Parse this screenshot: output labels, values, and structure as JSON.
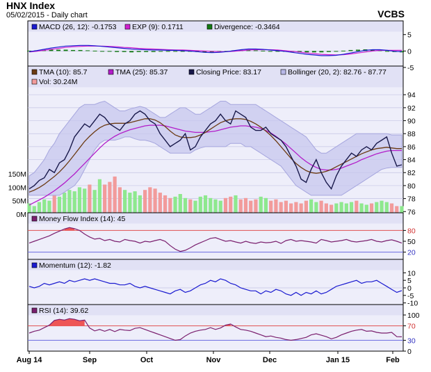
{
  "header": {
    "title": "HNX Index",
    "subtitle": "05/02/2015 - Daily chart",
    "brand": "VCBS"
  },
  "colors": {
    "panel_bg": "#eeeefa",
    "legend_bg": "#e1e1f5",
    "band": "#c7c7ee",
    "band_edge": "#a6a6de",
    "price": "#18184a",
    "tma10": "#6b3a12",
    "tma25": "#b21cc9",
    "macd": "#1a1ad0",
    "signal": "#d020d0",
    "div": "#137a13",
    "vol_up": "#8ee88e",
    "vol_down": "#f29b9b",
    "mfi": "#7a1f6e",
    "mom": "#1a1ad0",
    "rsi": "#7a1f6e",
    "hi_fill": "#ee5555",
    "lo_fill": "#6a3dcc",
    "ref_red": "#e05050",
    "ref_blue": "#6a6ae0"
  },
  "x_axis": {
    "labels": [
      "Aug 14",
      "Sep",
      "Oct",
      "Nov",
      "Dec",
      "Jan 15",
      "Feb"
    ]
  },
  "chart_data": [
    {
      "type": "line",
      "panel": "MACD",
      "legend": [
        "MACD (26, 12): -0.1753",
        "EXP (9): 0.1711",
        "Divergence: -0.3464"
      ],
      "series": [
        {
          "name": "MACD (26, 12)",
          "values": [
            -0.2,
            0.1,
            0.5,
            0.9,
            1.2,
            1.5,
            1.6,
            1.7,
            1.7,
            1.6,
            1.4,
            1.2,
            1.0,
            0.8,
            0.6,
            0.5,
            0.4,
            0.3,
            0.3,
            0.2,
            0.2,
            0.1,
            0.0,
            -0.2,
            -0.4,
            -0.5,
            -0.4,
            -0.2,
            0.1,
            0.4,
            0.6,
            0.6,
            0.5,
            0.3,
            0.1,
            -0.1,
            -0.4,
            -0.7,
            -1.0,
            -1.2,
            -1.4,
            -1.4,
            -1.3,
            -1.0,
            -0.6,
            -0.2,
            0.2,
            0.4,
            0.4,
            0.2,
            -0.1,
            -0.2
          ]
        },
        {
          "name": "EXP (9)",
          "values": [
            -0.3,
            -0.1,
            0.2,
            0.5,
            0.8,
            1.1,
            1.3,
            1.4,
            1.5,
            1.5,
            1.5,
            1.4,
            1.3,
            1.1,
            1.0,
            0.8,
            0.7,
            0.6,
            0.5,
            0.4,
            0.3,
            0.3,
            0.2,
            0.1,
            0.0,
            -0.1,
            -0.2,
            -0.2,
            -0.1,
            0.1,
            0.3,
            0.4,
            0.4,
            0.4,
            0.3,
            0.1,
            -0.1,
            -0.3,
            -0.6,
            -0.8,
            -1.0,
            -1.1,
            -1.2,
            -1.1,
            -0.9,
            -0.6,
            -0.3,
            0.0,
            0.2,
            0.2,
            0.2,
            0.2
          ]
        }
      ],
      "ylim": [
        -5,
        6
      ],
      "yticks": [
        5,
        0,
        -5
      ]
    },
    {
      "type": "line",
      "panel": "Price",
      "legend": [
        "TMA (10): 85.7",
        "TMA (25): 85.37",
        "Closing Price: 83.17",
        "Bollinger (20, 2): 82.76 - 87.77",
        "Vol: 30.24M"
      ],
      "series": [
        {
          "name": "Closing Price",
          "values": [
            79.5,
            80.0,
            80.8,
            81.2,
            82.5,
            82.0,
            83.5,
            84.0,
            85.5,
            87.5,
            88.5,
            89.5,
            89.0,
            90.0,
            91.0,
            90.5,
            89.5,
            89.0,
            88.5,
            89.5,
            90.0,
            91.0,
            91.5,
            91.0,
            90.0,
            89.5,
            88.0,
            87.0,
            86.0,
            86.5,
            87.0,
            88.0,
            85.5,
            86.0,
            87.5,
            88.5,
            89.5,
            90.0,
            91.0,
            90.0,
            89.5,
            91.5,
            91.0,
            90.5,
            89.0,
            88.5,
            88.5,
            89.0,
            88.0,
            87.5,
            87.0,
            86.0,
            84.5,
            83.0,
            81.0,
            80.5,
            82.5,
            84.0,
            82.0,
            80.5,
            79.5,
            81.5,
            83.0,
            84.0,
            85.0,
            84.5,
            85.5,
            86.0,
            85.5,
            86.5,
            87.0,
            87.5,
            85.0,
            83.0,
            83.2
          ]
        },
        {
          "name": "TMA (10)",
          "values": [
            79.0,
            79.3,
            79.7,
            80.2,
            80.8,
            81.4,
            82.1,
            82.9,
            83.8,
            84.8,
            85.8,
            86.8,
            87.6,
            88.3,
            88.9,
            89.3,
            89.5,
            89.6,
            89.6,
            89.6,
            89.7,
            89.9,
            90.1,
            90.3,
            90.3,
            90.1,
            89.7,
            89.1,
            88.4,
            87.8,
            87.5,
            87.4,
            87.4,
            87.5,
            87.8,
            88.2,
            88.7,
            89.2,
            89.7,
            90.0,
            90.2,
            90.3,
            90.3,
            90.2,
            89.9,
            89.5,
            89.0,
            88.4,
            87.7,
            86.9,
            86.0,
            85.1,
            84.2,
            83.4,
            82.8,
            82.3,
            82.0,
            81.9,
            82.0,
            82.2,
            82.5,
            82.9,
            83.3,
            83.7,
            84.1,
            84.5,
            84.9,
            85.2,
            85.5,
            85.7,
            85.8,
            85.9,
            85.8,
            85.7,
            85.7
          ]
        },
        {
          "name": "TMA (25)",
          "values": [
            77.0,
            77.4,
            77.8,
            78.2,
            78.7,
            79.2,
            79.8,
            80.4,
            81.1,
            81.8,
            82.6,
            83.4,
            84.2,
            85.0,
            85.8,
            86.5,
            87.1,
            87.6,
            88.0,
            88.3,
            88.6,
            88.8,
            89.0,
            89.2,
            89.3,
            89.3,
            89.3,
            89.2,
            89.0,
            88.8,
            88.6,
            88.4,
            88.3,
            88.2,
            88.2,
            88.2,
            88.3,
            88.4,
            88.6,
            88.8,
            89.0,
            89.1,
            89.2,
            89.2,
            89.1,
            89.0,
            88.8,
            88.5,
            88.1,
            87.6,
            87.0,
            86.4,
            85.7,
            85.0,
            84.3,
            83.7,
            83.2,
            82.8,
            82.5,
            82.4,
            82.4,
            82.5,
            82.7,
            83.0,
            83.3,
            83.6,
            84.0,
            84.3,
            84.6,
            84.9,
            85.1,
            85.3,
            85.4,
            85.4,
            85.4
          ]
        },
        {
          "name": "Bollinger upper",
          "values": [
            81.5,
            82.0,
            83.0,
            84.0,
            85.5,
            86.5,
            88.0,
            89.0,
            90.0,
            91.0,
            92.0,
            92.5,
            92.5,
            92.5,
            92.8,
            93.0,
            92.5,
            92.0,
            91.5,
            91.5,
            91.8,
            92.0,
            92.2,
            92.0,
            91.5,
            91.0,
            90.5,
            90.5,
            91.0,
            91.5,
            92.0,
            92.0,
            91.5,
            91.0,
            91.0,
            91.5,
            92.0,
            92.5,
            93.0,
            93.0,
            92.5,
            92.5,
            92.5,
            92.5,
            92.5,
            92.5,
            92.0,
            91.5,
            91.0,
            90.5,
            90.0,
            89.5,
            89.0,
            88.5,
            88.0,
            87.5,
            86.5,
            85.5,
            85.0,
            85.0,
            85.5,
            86.0,
            86.5,
            87.0,
            87.5,
            88.0,
            88.0,
            88.0,
            88.0,
            88.0,
            88.0,
            88.0,
            87.8,
            87.8,
            87.8
          ]
        },
        {
          "name": "Bollinger lower",
          "values": [
            78.5,
            78.5,
            78.5,
            78.5,
            78.5,
            78.5,
            78.5,
            79.0,
            79.5,
            80.0,
            81.0,
            82.5,
            84.0,
            85.5,
            86.5,
            87.0,
            87.0,
            87.0,
            87.2,
            87.5,
            87.5,
            87.2,
            87.0,
            87.0,
            86.8,
            86.5,
            86.0,
            85.5,
            85.0,
            85.0,
            85.0,
            85.0,
            85.0,
            85.5,
            85.8,
            86.0,
            86.0,
            86.0,
            86.0,
            86.0,
            86.5,
            86.5,
            86.5,
            86.0,
            86.0,
            85.5,
            85.0,
            84.5,
            84.0,
            83.5,
            83.0,
            82.0,
            81.0,
            80.0,
            79.5,
            79.0,
            78.5,
            78.5,
            78.5,
            78.5,
            78.5,
            78.5,
            78.5,
            79.0,
            79.5,
            80.0,
            80.5,
            81.0,
            81.5,
            82.0,
            82.5,
            82.7,
            82.8,
            82.8,
            82.8
          ]
        }
      ],
      "ylim": [
        76,
        95
      ],
      "yticks": [
        94,
        92,
        90,
        88,
        86,
        84,
        82,
        80,
        78,
        76
      ]
    },
    {
      "type": "bar",
      "panel": "Volume",
      "values": [
        40,
        30,
        45,
        55,
        50,
        70,
        65,
        80,
        90,
        85,
        100,
        95,
        110,
        90,
        130,
        110,
        120,
        140,
        100,
        90,
        80,
        85,
        70,
        90,
        100,
        95,
        80,
        70,
        60,
        65,
        75,
        60,
        55,
        50,
        65,
        70,
        60,
        55,
        50,
        60,
        65,
        70,
        55,
        60,
        50,
        55,
        65,
        60,
        50,
        55,
        45,
        50,
        40,
        45,
        40,
        50,
        55,
        45,
        50,
        40,
        35,
        40,
        45,
        40,
        45,
        50,
        40,
        35,
        40,
        45,
        50,
        45,
        40,
        30,
        30
      ],
      "ylabels": [
        "150M",
        "100M",
        "50M",
        "0M"
      ],
      "ylim": [
        0,
        150
      ]
    },
    {
      "type": "line",
      "panel": "MFI",
      "legend": [
        "Money Flow Index (14): 45"
      ],
      "values": [
        45,
        50,
        55,
        60,
        65,
        72,
        78,
        84,
        88,
        85,
        80,
        70,
        62,
        56,
        58,
        52,
        55,
        50,
        48,
        55,
        52,
        50,
        45,
        50,
        48,
        52,
        55,
        50,
        38,
        28,
        22,
        25,
        32,
        40,
        46,
        52,
        58,
        60,
        55,
        50,
        52,
        48,
        45,
        50,
        46,
        44,
        48,
        46,
        47,
        50,
        44,
        52,
        55,
        50,
        52,
        50,
        48,
        45,
        55,
        52,
        48,
        50,
        52,
        55,
        50,
        48,
        50,
        52,
        55,
        50,
        48,
        52,
        54,
        50,
        45
      ],
      "ylim": [
        0,
        100
      ],
      "yticks": [
        80,
        50,
        20
      ]
    },
    {
      "type": "line",
      "panel": "Momentum",
      "legend": [
        "Momentum (12): -1.82"
      ],
      "values": [
        1,
        0,
        1,
        3,
        2,
        3,
        4,
        3,
        5,
        4,
        5,
        6,
        5,
        6,
        5,
        4,
        3,
        3,
        2,
        2,
        3,
        1,
        0,
        1,
        0,
        -1,
        -2,
        -3,
        -4,
        -2,
        -1,
        -3,
        -2,
        0,
        2,
        3,
        5,
        4,
        6,
        5,
        3,
        2,
        0,
        -1,
        -2,
        -2,
        -4,
        -2,
        -3,
        -1,
        -2,
        -4,
        -5,
        -3,
        -5,
        -3,
        -4,
        -2,
        -4,
        -3,
        -1,
        1,
        2,
        3,
        4,
        5,
        3,
        4,
        4,
        5,
        3,
        1,
        -1,
        -3,
        -1.8
      ],
      "ylim": [
        -12,
        12
      ],
      "yticks": [
        10,
        5,
        0,
        -5,
        -10
      ]
    },
    {
      "type": "line",
      "panel": "RSI",
      "legend": [
        "RSI (14): 39.62"
      ],
      "values": [
        50,
        55,
        58,
        65,
        72,
        85,
        88,
        86,
        90,
        88,
        84,
        86,
        64,
        56,
        60,
        55,
        60,
        54,
        60,
        58,
        57,
        63,
        65,
        60,
        55,
        50,
        45,
        40,
        35,
        30,
        32,
        42,
        50,
        55,
        58,
        60,
        65,
        60,
        64,
        72,
        75,
        67,
        60,
        58,
        55,
        50,
        45,
        40,
        42,
        38,
        36,
        32,
        30,
        32,
        35,
        38,
        45,
        48,
        44,
        40,
        34,
        38,
        45,
        50,
        55,
        58,
        60,
        55,
        56,
        52,
        50,
        50,
        52,
        40,
        39.6
      ],
      "ylim": [
        0,
        100
      ],
      "yticks": [
        100,
        70,
        30,
        0
      ]
    }
  ]
}
